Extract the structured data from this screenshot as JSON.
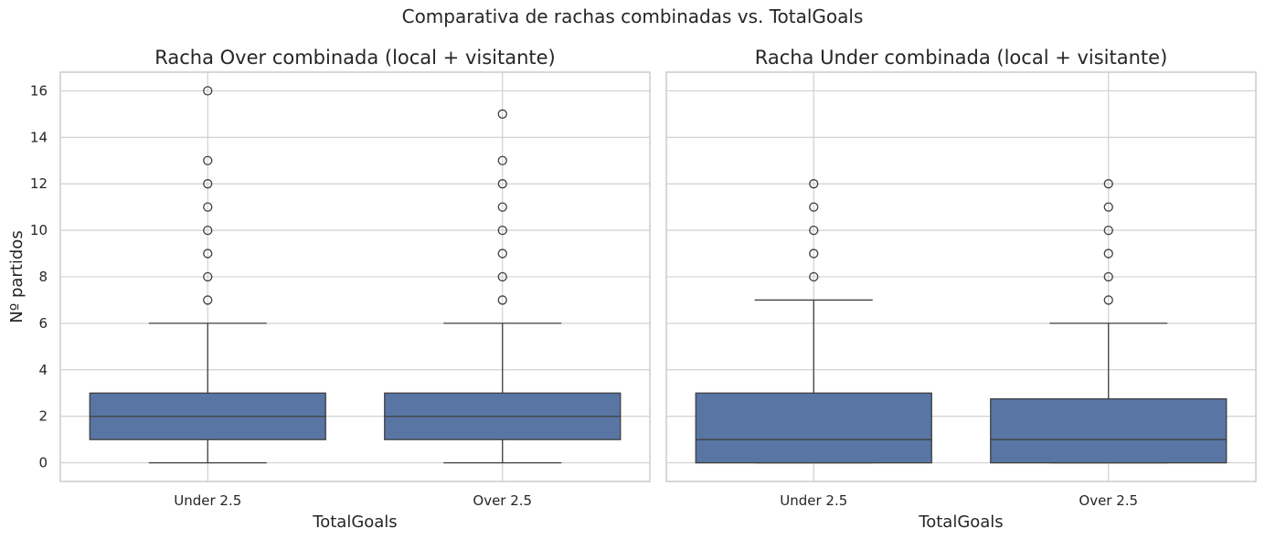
{
  "suptitle": "Comparativa de rachas combinadas vs. TotalGoals",
  "colors": {
    "box_fill": "#5875a4",
    "line": "#3f3f3f",
    "grid": "#cccccc",
    "spine": "#cccccc"
  },
  "chart_data": [
    {
      "type": "box",
      "title": "Racha Over combinada (local + visitante)",
      "xlabel": "TotalGoals",
      "ylabel": "Nº partidos",
      "categories": [
        "Under 2.5",
        "Over 2.5"
      ],
      "ylim": [
        -0.8,
        16.8
      ],
      "yticks": [
        0,
        2,
        4,
        6,
        8,
        10,
        12,
        14,
        16
      ],
      "grid": true,
      "boxes": [
        {
          "category": "Under 2.5",
          "whisker_low": 0,
          "q1": 1,
          "median": 2,
          "q3": 3,
          "whisker_high": 6,
          "outliers": [
            7,
            8,
            9,
            10,
            11,
            12,
            13,
            16
          ]
        },
        {
          "category": "Over 2.5",
          "whisker_low": 0,
          "q1": 1,
          "median": 2,
          "q3": 3,
          "whisker_high": 6,
          "outliers": [
            7,
            8,
            9,
            10,
            11,
            12,
            13,
            15
          ]
        }
      ]
    },
    {
      "type": "box",
      "title": "Racha Under combinada (local + visitante)",
      "xlabel": "TotalGoals",
      "ylabel": "",
      "categories": [
        "Under 2.5",
        "Over 2.5"
      ],
      "ylim": [
        -0.8,
        16.8
      ],
      "yticks": [
        0,
        2,
        4,
        6,
        8,
        10,
        12,
        14,
        16
      ],
      "grid": true,
      "boxes": [
        {
          "category": "Under 2.5",
          "whisker_low": 0,
          "q1": 0,
          "median": 1,
          "q3": 3,
          "whisker_high": 7,
          "outliers": [
            8,
            9,
            10,
            11,
            12
          ]
        },
        {
          "category": "Over 2.5",
          "whisker_low": 0,
          "q1": 0,
          "median": 1,
          "q3": 2.75,
          "whisker_high": 6,
          "outliers": [
            7,
            8,
            9,
            10,
            11,
            12
          ]
        }
      ]
    }
  ]
}
